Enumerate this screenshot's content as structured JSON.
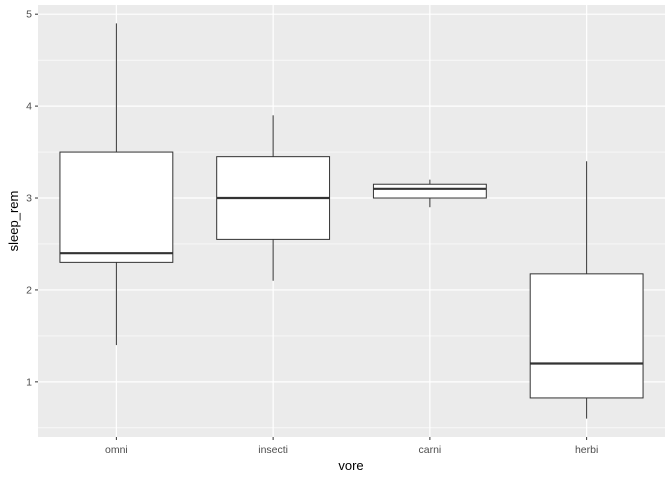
{
  "chart_data": {
    "type": "boxplot",
    "title": "",
    "xlabel": "vore",
    "ylabel": "sleep_rem",
    "categories": [
      "omni",
      "insecti",
      "carni",
      "herbi"
    ],
    "boxes": [
      {
        "category": "omni",
        "whisker_low": 1.4,
        "q1": 2.3,
        "median": 2.4,
        "q3": 3.5,
        "whisker_high": 4.9
      },
      {
        "category": "insecti",
        "whisker_low": 2.1,
        "q1": 2.55,
        "median": 3.0,
        "q3": 3.45,
        "whisker_high": 3.9
      },
      {
        "category": "carni",
        "whisker_low": 2.9,
        "q1": 3.0,
        "median": 3.1,
        "q3": 3.15,
        "whisker_high": 3.2
      },
      {
        "category": "herbi",
        "whisker_low": 0.6,
        "q1": 0.825,
        "median": 1.2,
        "q3": 2.175,
        "whisker_high": 3.4
      }
    ],
    "yticks": [
      1,
      2,
      3,
      4,
      5
    ],
    "ylim": [
      0.4,
      5.1
    ],
    "grid": true,
    "colors": {
      "panel_background": "#EBEBEB",
      "grid": "#FFFFFF",
      "box_fill": "#FFFFFF",
      "box_stroke": "#333333",
      "tick_text": "#4D4D4D",
      "axis_title": "#000000"
    }
  }
}
